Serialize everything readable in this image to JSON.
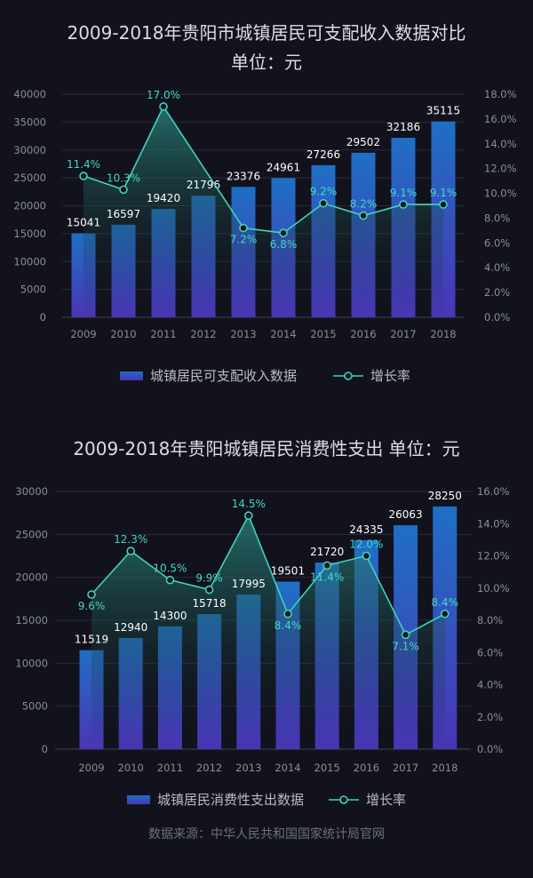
{
  "colors": {
    "background": "#11121c",
    "bar_top": "#1f6fc4",
    "bar_bottom": "#4a35b5",
    "line": "#3fd3c0",
    "grid": "#2a2c3a"
  },
  "chart_data": [
    {
      "type": "bar",
      "title_line1": "2009-2018年贵阳市城镇居民可支配收入数据对比",
      "title_line2": "单位：元",
      "categories": [
        "2009",
        "2010",
        "2011",
        "2012",
        "2013",
        "2014",
        "2015",
        "2016",
        "2017",
        "2018"
      ],
      "series": [
        {
          "name": "城镇居民可支配收入数据",
          "type": "bar",
          "axis": "left",
          "values": [
            15041,
            16597,
            19420,
            21796,
            23376,
            24961,
            27266,
            29502,
            32186,
            35115
          ]
        },
        {
          "name": "增长率",
          "type": "line",
          "axis": "right",
          "values": [
            11.4,
            10.3,
            17.0,
            null,
            7.2,
            6.8,
            9.2,
            8.2,
            9.1,
            9.1
          ],
          "labels": [
            "11.4%",
            "10.3%",
            "17.0%",
            "",
            "7.2%",
            "6.8%",
            "9.2%",
            "8.2%",
            "9.1%",
            "9.1%"
          ]
        }
      ],
      "ylim": [
        0,
        40000
      ],
      "yticks": [
        "0",
        "5000",
        "10000",
        "15000",
        "20000",
        "25000",
        "30000",
        "35000",
        "40000"
      ],
      "y2lim": [
        0,
        18
      ],
      "y2ticks": [
        "0.0%",
        "2.0%",
        "4.0%",
        "6.0%",
        "8.0%",
        "10.0%",
        "12.0%",
        "14.0%",
        "16.0%",
        "18.0%"
      ],
      "grid": true,
      "legend": "bottom"
    },
    {
      "type": "bar",
      "title_line1": "2009-2018年贵阳城镇居民消费性支出 单位：元",
      "categories": [
        "2009",
        "2010",
        "2011",
        "2012",
        "2013",
        "2014",
        "2015",
        "2016",
        "2017",
        "2018"
      ],
      "series": [
        {
          "name": "城镇居民消费性支出数据",
          "type": "bar",
          "axis": "left",
          "values": [
            11519,
            12940,
            14300,
            15718,
            17995,
            19501,
            21720,
            24335,
            26063,
            28250
          ]
        },
        {
          "name": "增长率",
          "type": "line",
          "axis": "right",
          "values": [
            9.6,
            12.3,
            10.5,
            9.9,
            14.5,
            8.4,
            11.4,
            12.0,
            7.1,
            8.4
          ],
          "labels": [
            "9.6%",
            "12.3%",
            "10.5%",
            "9.9%",
            "14.5%",
            "8.4%",
            "11.4%",
            "12.0%",
            "7.1%",
            "8.4%"
          ]
        }
      ],
      "ylim": [
        0,
        30000
      ],
      "yticks": [
        "0",
        "5000",
        "10000",
        "15000",
        "20000",
        "25000",
        "30000"
      ],
      "y2lim": [
        0,
        16
      ],
      "y2ticks": [
        "0.0%",
        "2.0%",
        "4.0%",
        "6.0%",
        "8.0%",
        "10.0%",
        "12.0%",
        "14.0%",
        "16.0%"
      ],
      "grid": true,
      "legend": "bottom"
    }
  ],
  "source": "数据来源：中华人民共和国国家统计局官网"
}
